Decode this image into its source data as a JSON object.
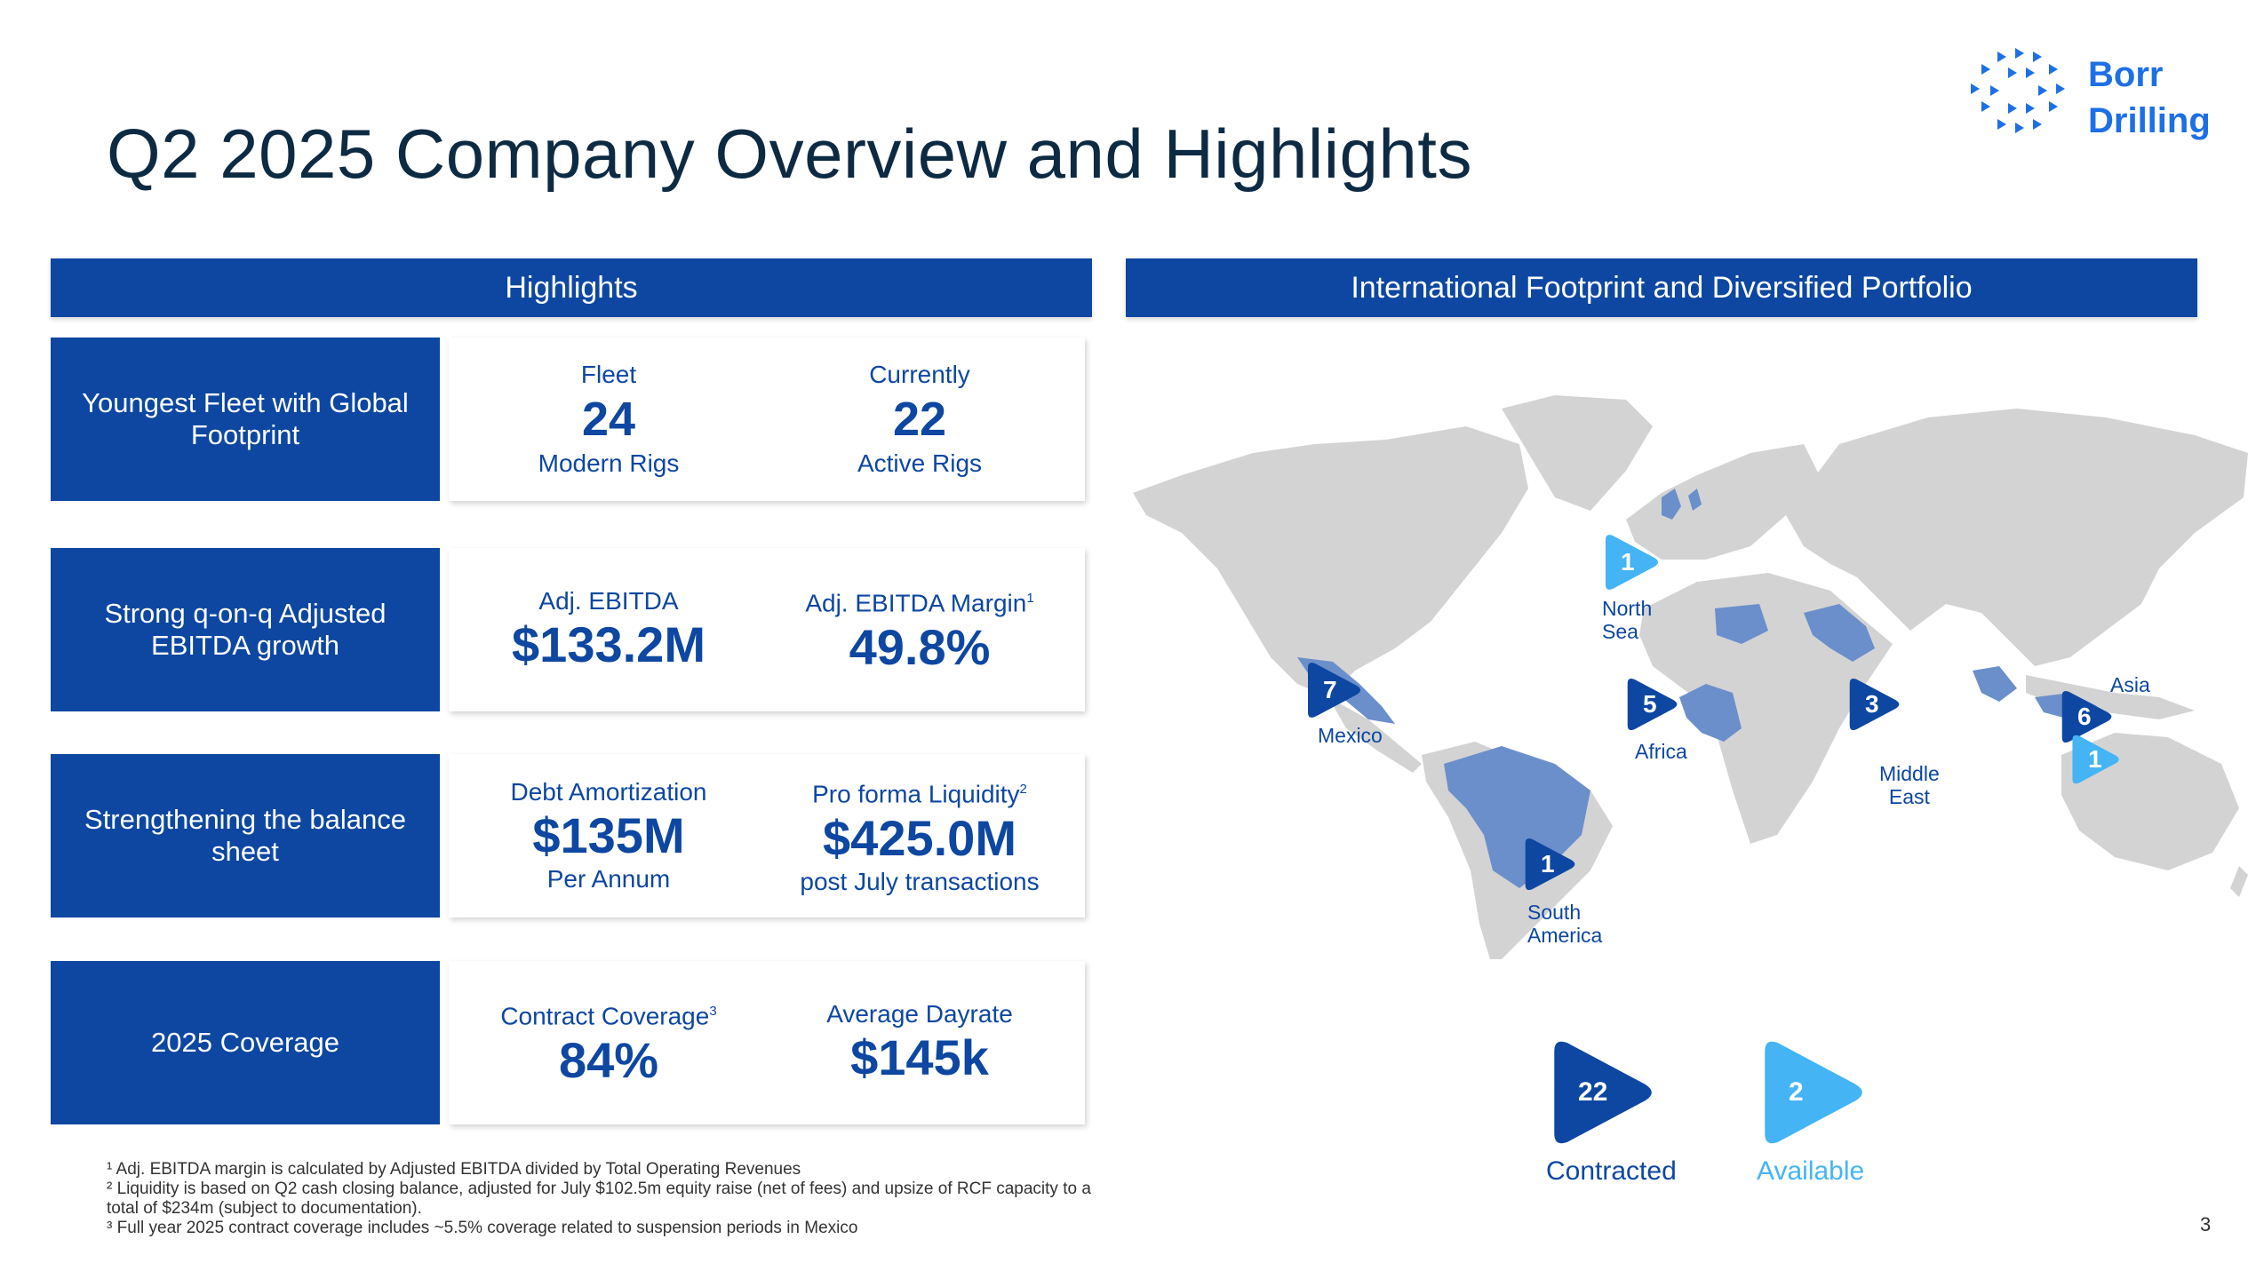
{
  "page": {
    "title": "Q2 2025 Company Overview and Highlights",
    "page_number": "3"
  },
  "logo": {
    "line1": "Borr",
    "line2": "Drilling",
    "color": "#1d6fe6"
  },
  "highlights": {
    "header": "Highlights",
    "rows": [
      {
        "label": "Youngest Fleet with Global Footprint",
        "left": {
          "top": "Fleet",
          "value": "24",
          "bottom": "Modern Rigs"
        },
        "right": {
          "top": "Currently",
          "value": "22",
          "bottom": "Active Rigs"
        }
      },
      {
        "label": "Strong q-on-q Adjusted EBITDA growth",
        "left": {
          "top": "Adj. EBITDA",
          "value": "$133.2M"
        },
        "right": {
          "top": "Adj. EBITDA Margin",
          "sup": "1",
          "value": "49.8%"
        }
      },
      {
        "label": "Strengthening the balance sheet",
        "left": {
          "top": "Debt Amortization",
          "value": "$135M",
          "bottom": "Per Annum"
        },
        "right": {
          "top": "Pro forma Liquidity",
          "sup": "2",
          "value": "$425.0M",
          "bottom": "post July transactions"
        }
      },
      {
        "label": "2025 Coverage",
        "left": {
          "top": "Contract Coverage",
          "sup": "3",
          "value": "84%"
        },
        "right": {
          "top": "Average Dayrate",
          "value": "$145k"
        }
      }
    ]
  },
  "footprint": {
    "header": "International Footprint and Diversified Portfolio",
    "regions": {
      "north_sea": {
        "label_1": "North",
        "label_2": "Sea",
        "count": "1"
      },
      "mexico": {
        "label": "Mexico",
        "count": "7"
      },
      "africa": {
        "label": "Africa",
        "count": "5"
      },
      "middle_east": {
        "label_1": "Middle",
        "label_2": "East",
        "count": "3"
      },
      "asia": {
        "label": "Asia",
        "count_contracted": "6",
        "count_available": "1"
      },
      "south_america": {
        "label_1": "South",
        "label_2": "America",
        "count": "1"
      }
    },
    "legend": {
      "contracted": {
        "count": "22",
        "label": "Contracted",
        "color": "#0d47a1"
      },
      "available": {
        "count": "2",
        "label": "Available",
        "color": "#44b4f5"
      }
    }
  },
  "footnotes": [
    "¹ Adj. EBITDA margin is calculated by Adjusted EBITDA divided by Total Operating Revenues",
    "² Liquidity is based on Q2 cash closing balance, adjusted for July $102.5m equity raise (net of fees) and upsize of RCF capacity to a total of $234m (subject to documentation).",
    "³ Full year 2025 contract coverage includes ~5.5% coverage related to suspension periods in Mexico"
  ]
}
